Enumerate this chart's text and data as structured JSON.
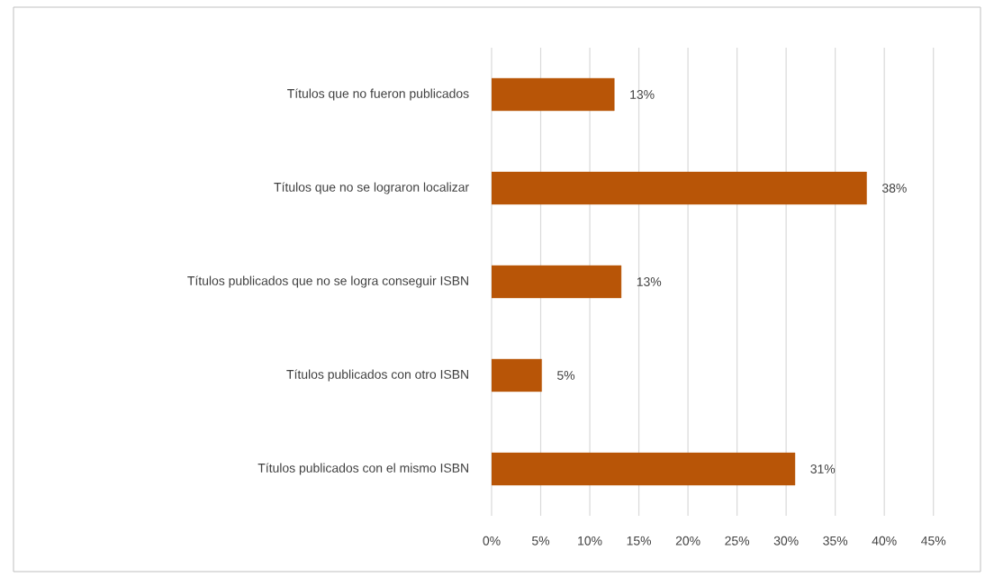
{
  "chart_data": {
    "type": "bar",
    "orientation": "horizontal",
    "categories": [
      "Títulos que no fueron publicados",
      "Títulos que no se lograron localizar",
      "Títulos publicados que no se logra conseguir ISBN",
      "Títulos publicados con otro ISBN",
      "Títulos publicados con el mismo ISBN"
    ],
    "values": [
      12.5,
      38.2,
      13.2,
      5.1,
      30.9
    ],
    "value_labels": [
      "13%",
      "38%",
      "13%",
      "5%",
      "31%"
    ],
    "color": "#b85507",
    "xlim": [
      0,
      45
    ],
    "xticks": [
      {
        "value": 0,
        "label": "0%"
      },
      {
        "value": 5,
        "label": "5%"
      },
      {
        "value": 10,
        "label": "10%"
      },
      {
        "value": 15,
        "label": "15%"
      },
      {
        "value": 20,
        "label": "20%"
      },
      {
        "value": 25,
        "label": "25%"
      },
      {
        "value": 30,
        "label": "30%"
      },
      {
        "value": 35,
        "label": "35%"
      },
      {
        "value": 40,
        "label": "40%"
      },
      {
        "value": 45,
        "label": "45%"
      }
    ],
    "grid": "x"
  }
}
